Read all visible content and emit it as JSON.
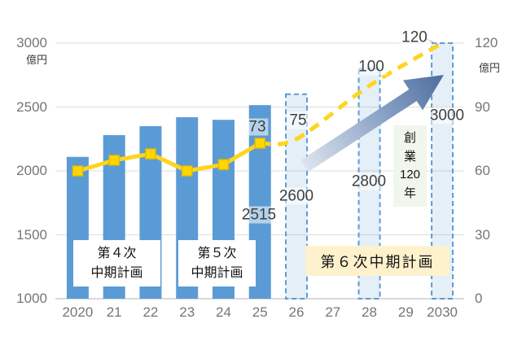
{
  "chart_data": {
    "type": "combo-bar-line",
    "categories": [
      "2020",
      "21",
      "22",
      "23",
      "24",
      "25",
      "26",
      "27",
      "28",
      "29",
      "2030"
    ],
    "left_axis": {
      "unit": "億円",
      "ticks": [
        "3000",
        "2500",
        "2000",
        "1500",
        "1000"
      ],
      "min": 1000,
      "max": 3000
    },
    "right_axis": {
      "unit": "億円",
      "ticks": [
        "120",
        "90",
        "60",
        "30",
        "0"
      ],
      "min": 0,
      "max": 120
    },
    "bars_actual": {
      "indices": [
        0,
        1,
        2,
        3,
        4,
        5
      ],
      "values": [
        2110,
        2280,
        2350,
        2420,
        2400,
        2515
      ],
      "color": "#5B9BD5"
    },
    "bars_planned": {
      "indices": [
        6,
        8,
        10
      ],
      "values": [
        2600,
        2800,
        3000
      ],
      "fill": "rgba(91,155,213,0.16)",
      "stroke": "#5B9BD5"
    },
    "line_actual": {
      "indices": [
        0,
        1,
        2,
        3,
        4,
        5
      ],
      "values": [
        60,
        65,
        68,
        60,
        63,
        73
      ],
      "color": "#FFD41C",
      "marker_fill": "#FFD800",
      "marker_stroke": "#EBB800"
    },
    "line_planned": {
      "indices": [
        5,
        6,
        8,
        10
      ],
      "values": [
        73,
        75,
        100,
        120
      ],
      "color": "#FFD41C",
      "style": "dashed"
    },
    "value_labels": [
      {
        "text": "73",
        "key": "line5"
      },
      {
        "text": "75",
        "key": "line6"
      },
      {
        "text": "100",
        "key": "line8"
      },
      {
        "text": "120",
        "key": "line10"
      },
      {
        "text": "2515",
        "key": "bar5"
      },
      {
        "text": "2600",
        "key": "bar6"
      },
      {
        "text": "2800",
        "key": "bar8"
      },
      {
        "text": "3000",
        "key": "bar10"
      }
    ],
    "grid": "horizontal",
    "legend": "none"
  },
  "plan_boxes": {
    "box4": {
      "line1": "第４次",
      "line2": "中期計画"
    },
    "box5": {
      "line1": "第５次",
      "line2": "中期計画"
    },
    "box6": {
      "label": "第６次中期計画"
    },
    "founding": {
      "chars": [
        "創",
        "業",
        "120",
        "年"
      ]
    }
  }
}
